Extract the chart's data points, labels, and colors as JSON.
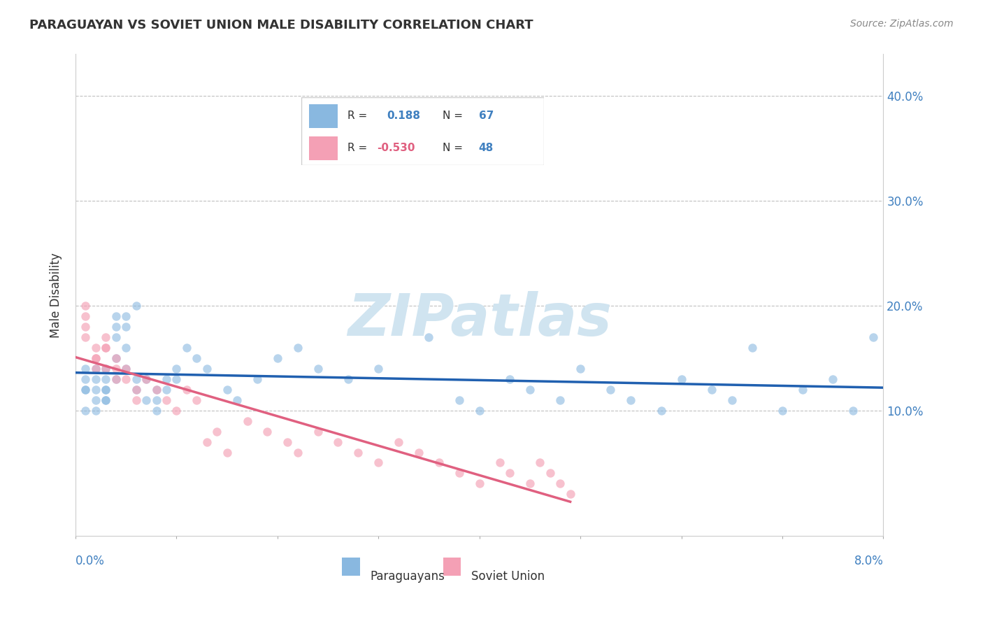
{
  "title": "PARAGUAYAN VS SOVIET UNION MALE DISABILITY CORRELATION CHART",
  "source": "Source: ZipAtlas.com",
  "ylabel": "Male Disability",
  "yticks": [
    0.0,
    0.1,
    0.2,
    0.3,
    0.4
  ],
  "ytick_labels": [
    "",
    "10.0%",
    "20.0%",
    "30.0%",
    "40.0%"
  ],
  "xlim": [
    0.0,
    0.08
  ],
  "ylim": [
    -0.02,
    0.44
  ],
  "paraguayan_scatter_color": "#89b8e0",
  "paraguayan_scatter_alpha": 0.6,
  "paraguayan_scatter_size": 80,
  "soviet_scatter_color": "#f4a0b5",
  "soviet_scatter_alpha": 0.65,
  "soviet_scatter_size": 80,
  "paraguayan_line_color": "#2060b0",
  "soviet_line_color": "#e06080",
  "watermark": "ZIPatlas",
  "watermark_color": "#d0e4f0",
  "background_color": "#ffffff",
  "paraguayan_x": [
    0.001,
    0.001,
    0.002,
    0.001,
    0.001,
    0.002,
    0.001,
    0.003,
    0.002,
    0.002,
    0.003,
    0.002,
    0.003,
    0.003,
    0.003,
    0.004,
    0.004,
    0.004,
    0.005,
    0.004,
    0.003,
    0.004,
    0.005,
    0.005,
    0.006,
    0.005,
    0.006,
    0.006,
    0.007,
    0.007,
    0.008,
    0.008,
    0.008,
    0.009,
    0.009,
    0.01,
    0.01,
    0.011,
    0.012,
    0.013,
    0.015,
    0.016,
    0.018,
    0.02,
    0.022,
    0.024,
    0.027,
    0.03,
    0.035,
    0.038,
    0.04,
    0.043,
    0.045,
    0.048,
    0.05,
    0.053,
    0.055,
    0.058,
    0.06,
    0.063,
    0.065,
    0.067,
    0.07,
    0.072,
    0.075,
    0.077,
    0.079
  ],
  "paraguayan_y": [
    0.12,
    0.13,
    0.11,
    0.14,
    0.1,
    0.13,
    0.12,
    0.11,
    0.14,
    0.1,
    0.13,
    0.12,
    0.11,
    0.14,
    0.12,
    0.18,
    0.19,
    0.17,
    0.16,
    0.13,
    0.12,
    0.15,
    0.19,
    0.18,
    0.2,
    0.14,
    0.13,
    0.12,
    0.11,
    0.13,
    0.1,
    0.12,
    0.11,
    0.13,
    0.12,
    0.14,
    0.13,
    0.16,
    0.15,
    0.14,
    0.12,
    0.11,
    0.13,
    0.15,
    0.16,
    0.14,
    0.13,
    0.14,
    0.17,
    0.11,
    0.1,
    0.13,
    0.12,
    0.11,
    0.14,
    0.12,
    0.11,
    0.1,
    0.13,
    0.12,
    0.11,
    0.16,
    0.1,
    0.12,
    0.13,
    0.1,
    0.17
  ],
  "soviet_x": [
    0.001,
    0.001,
    0.002,
    0.001,
    0.002,
    0.001,
    0.002,
    0.003,
    0.003,
    0.002,
    0.003,
    0.003,
    0.004,
    0.004,
    0.004,
    0.005,
    0.005,
    0.006,
    0.006,
    0.007,
    0.008,
    0.009,
    0.01,
    0.011,
    0.012,
    0.013,
    0.014,
    0.015,
    0.017,
    0.019,
    0.021,
    0.022,
    0.024,
    0.026,
    0.028,
    0.03,
    0.032,
    0.034,
    0.036,
    0.038,
    0.04,
    0.042,
    0.043,
    0.045,
    0.046,
    0.047,
    0.048,
    0.049
  ],
  "soviet_y": [
    0.2,
    0.17,
    0.16,
    0.19,
    0.15,
    0.18,
    0.14,
    0.17,
    0.16,
    0.15,
    0.14,
    0.16,
    0.15,
    0.14,
    0.13,
    0.14,
    0.13,
    0.12,
    0.11,
    0.13,
    0.12,
    0.11,
    0.1,
    0.12,
    0.11,
    0.07,
    0.08,
    0.06,
    0.09,
    0.08,
    0.07,
    0.06,
    0.08,
    0.07,
    0.06,
    0.05,
    0.07,
    0.06,
    0.05,
    0.04,
    0.03,
    0.05,
    0.04,
    0.03,
    0.05,
    0.04,
    0.03,
    0.02
  ]
}
